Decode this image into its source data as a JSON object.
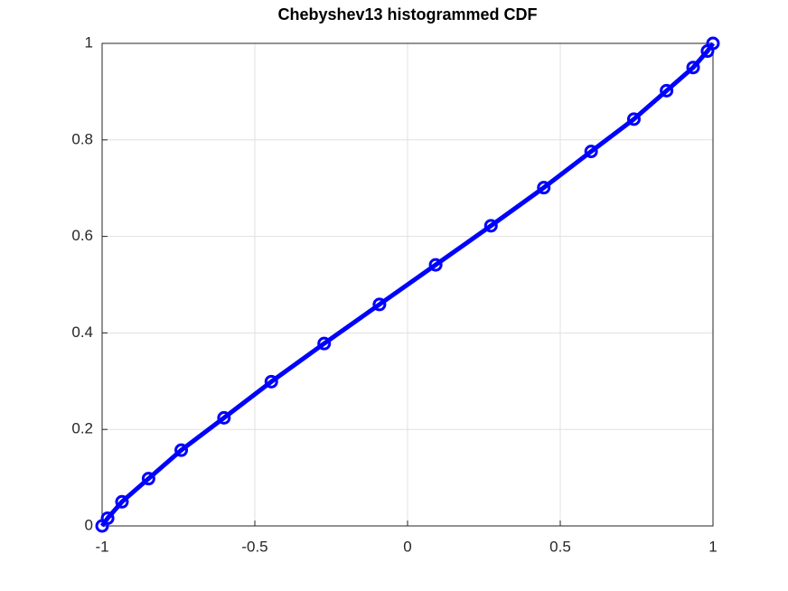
{
  "chart_data": {
    "type": "line",
    "title": "Chebyshev13 histogrammed CDF",
    "x": [
      -1,
      -0.982,
      -0.935,
      -0.848,
      -0.741,
      -0.601,
      -0.446,
      -0.273,
      -0.092,
      0.092,
      0.273,
      0.446,
      0.601,
      0.741,
      0.848,
      0.935,
      0.982,
      1
    ],
    "series": [
      {
        "color": "#0000ff",
        "values": [
          0,
          0.016,
          0.05,
          0.098,
          0.157,
          0.224,
          0.299,
          0.378,
          0.459,
          0.541,
          0.622,
          0.701,
          0.776,
          0.843,
          0.902,
          0.95,
          0.984,
          1
        ]
      }
    ],
    "xlim": [
      -1,
      1
    ],
    "xticks": [
      -1,
      -0.5,
      0,
      0.5,
      1
    ],
    "ylim": [
      0,
      1
    ],
    "yticks": [
      0,
      0.2,
      0.4,
      0.6,
      0.8,
      1
    ],
    "grid": true
  }
}
